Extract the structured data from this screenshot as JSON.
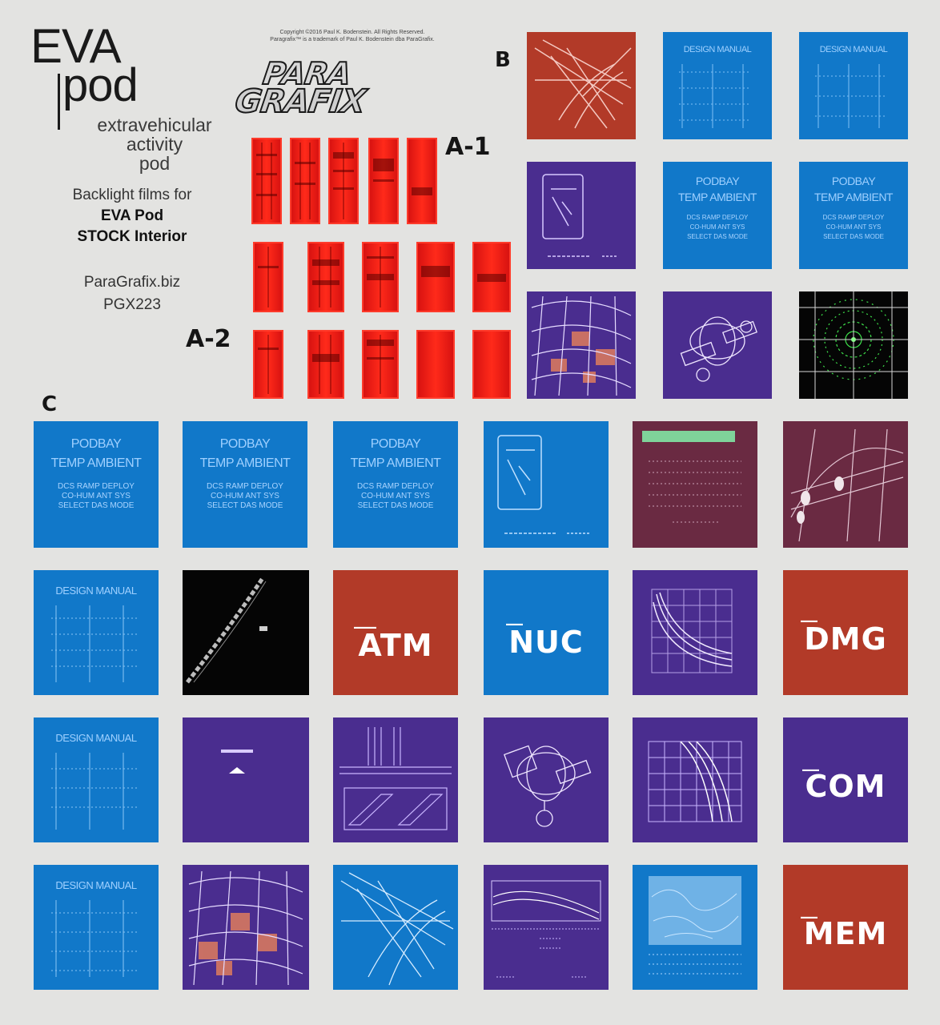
{
  "header": {
    "title_line1": "EVA",
    "title_line2": "pod",
    "subtitle_line1": "extravehicular",
    "subtitle_line2": "activity",
    "subtitle_line3": "pod",
    "blurb_line1": "Backlight films for",
    "blurb_line2": "EVA Pod",
    "blurb_line3": "STOCK Interior",
    "website": "ParaGrafix.biz",
    "product_code": "PGX223",
    "copyright_line1": "Copyright ©2016 Paul K. Bodenstein. All Rights Reserved.",
    "copyright_line2": "Paragrafix™ is a trademark of Paul K. Bodenstein dba ParaGrafix.",
    "logo_line1": "PARA",
    "logo_line2": "GRAFIX"
  },
  "sections": {
    "a1": "A-1",
    "a2": "A-2",
    "b": "B",
    "c": "C"
  },
  "tile_text": {
    "design_manual": "DESIGN MANUAL",
    "podbay": "PODBAY",
    "temp_ambient": "TEMP AMBIENT",
    "podbay_small": "DCS  RAMP DEPLOY\nCO-HUM ANT  SYS\nSELECT  DAS  MODE",
    "atm": "ATM",
    "nuc": "NUC",
    "dmg": "DMG",
    "com": "COM",
    "mem": "MEM"
  },
  "colors": {
    "background": "#e3e3e1",
    "blue": "#1178c9",
    "purple": "#4a2d8f",
    "rust": "#b23a28",
    "red": "#ff2a1a"
  }
}
